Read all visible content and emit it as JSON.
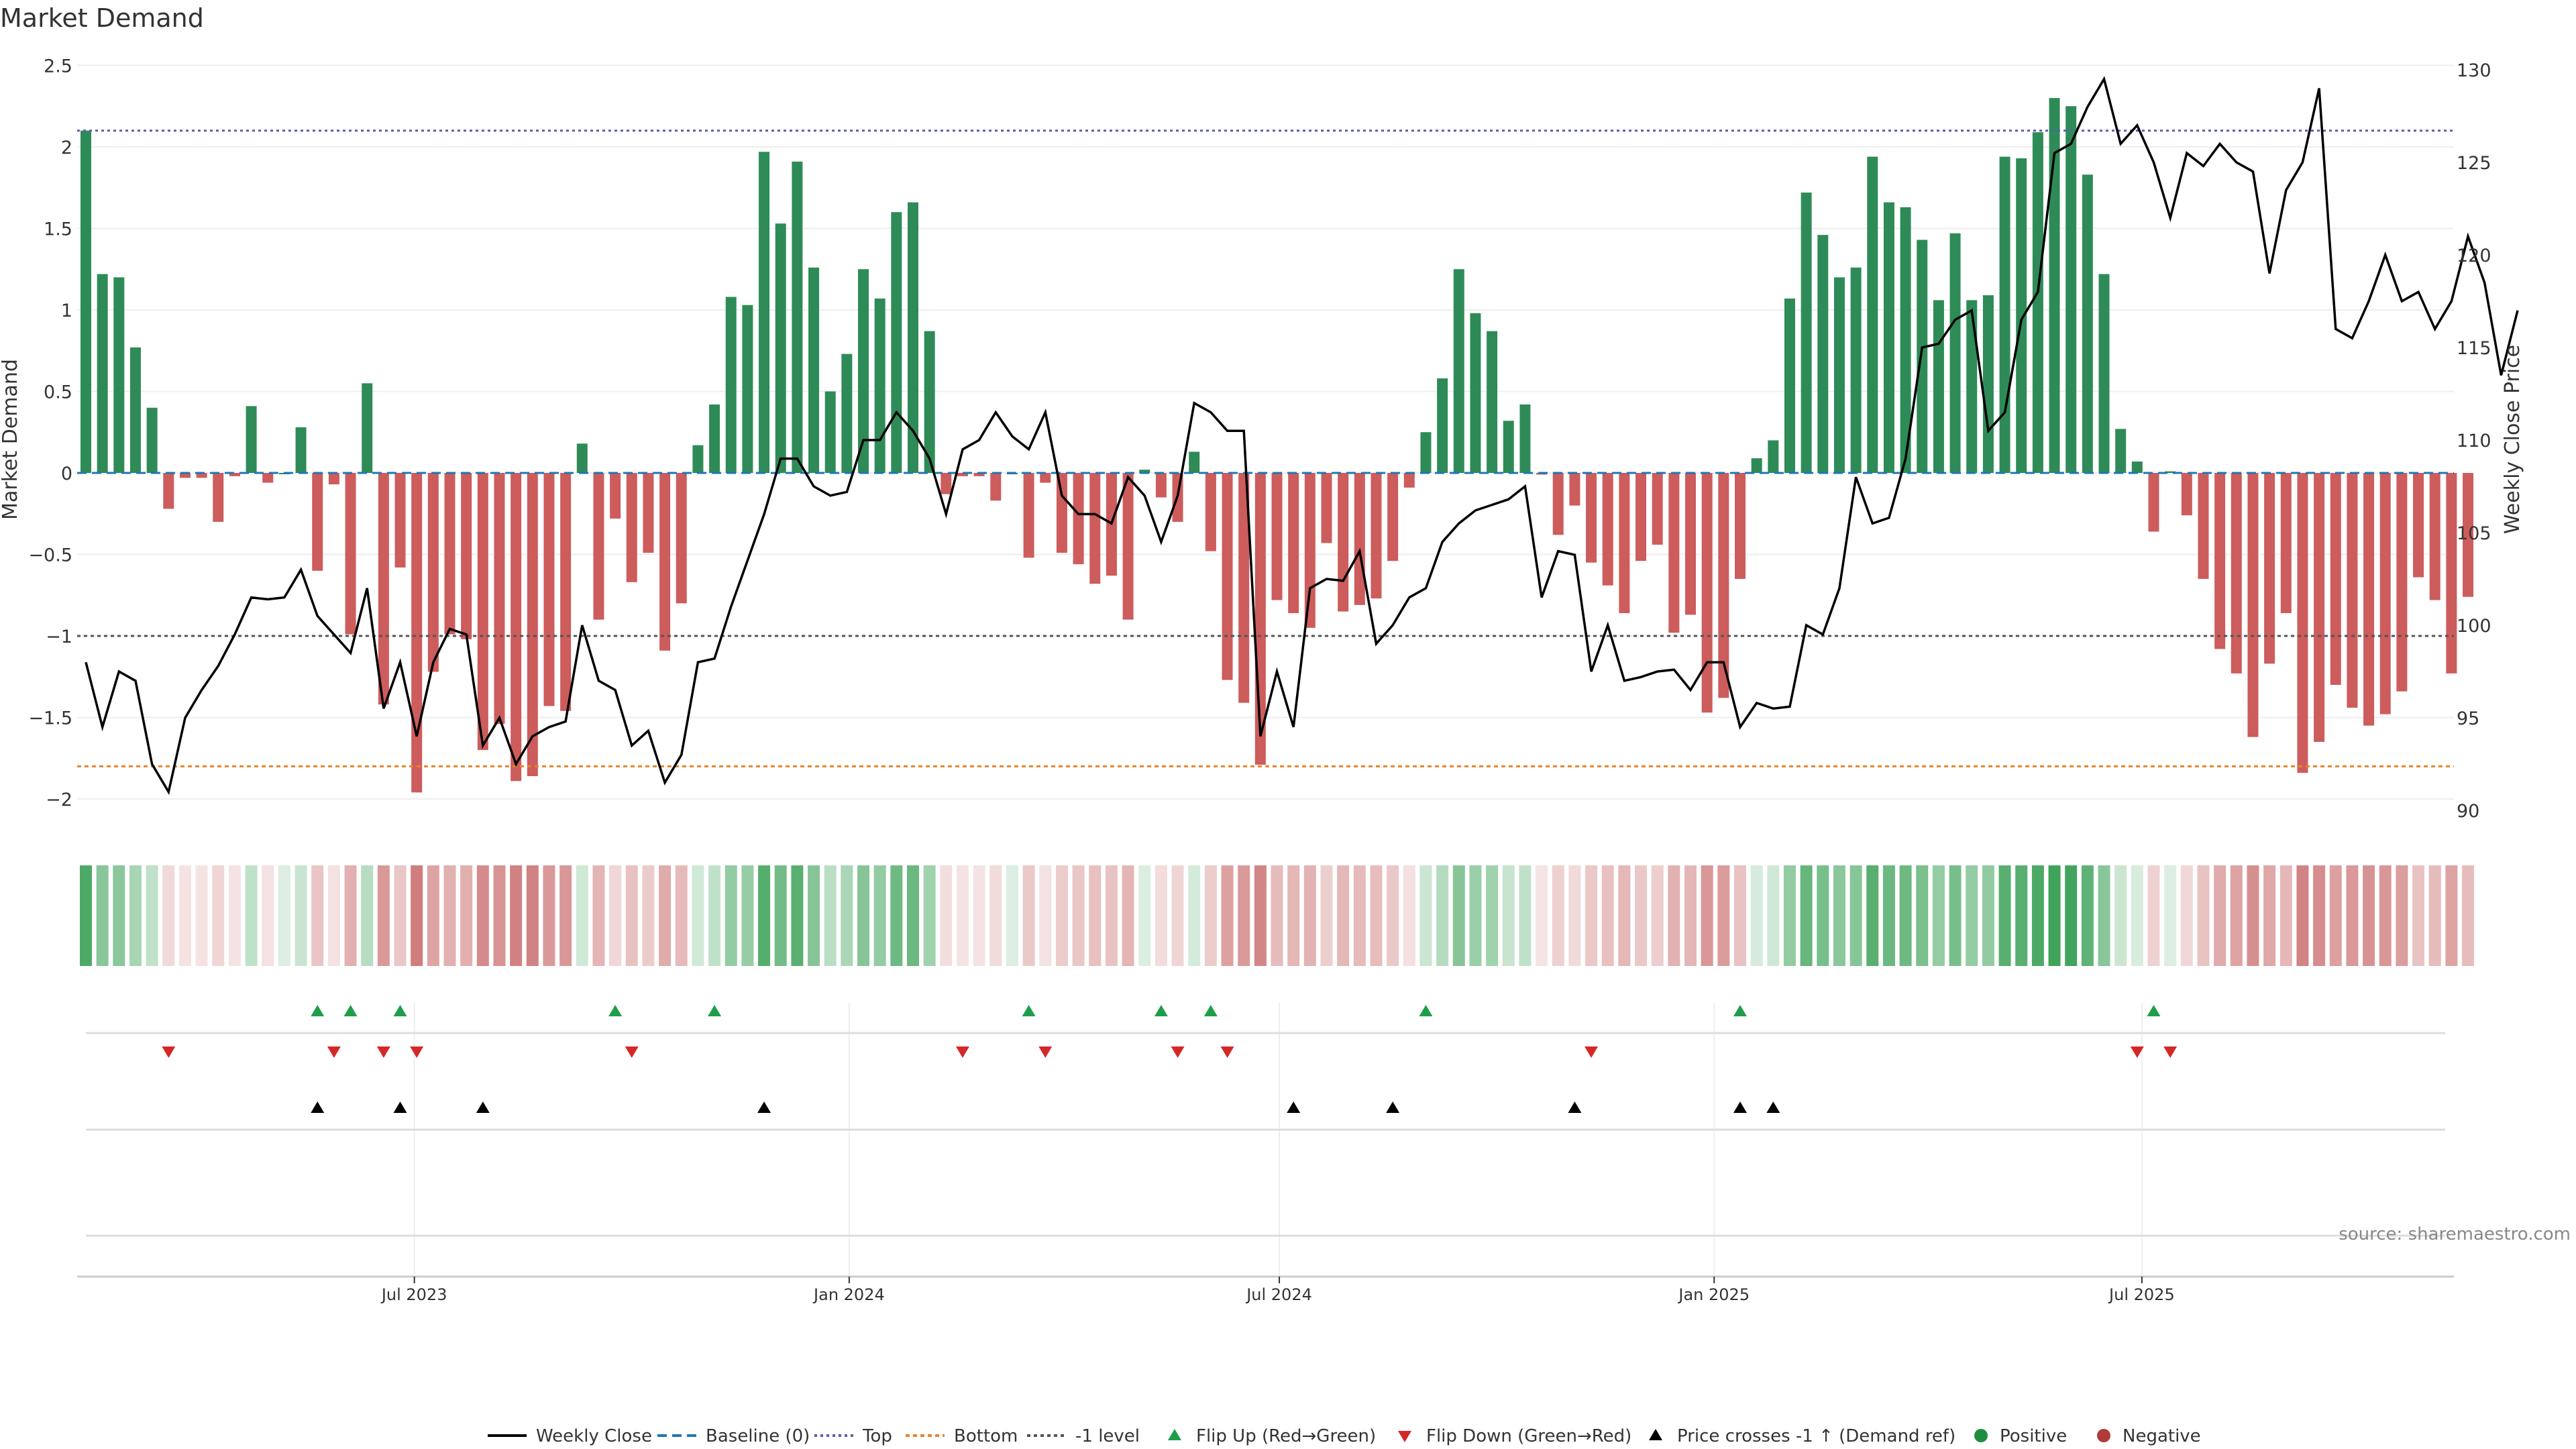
{
  "source_note": "source: sharemaestro.com",
  "colors": {
    "positive": "#2e8b57",
    "negative": "#cd5c5c",
    "price": "#000000",
    "baseline": "#1f77b4",
    "top": "#5b5bb5",
    "bottom": "#e8832a",
    "minus1": "#555555",
    "flip_up": "#1e9e4a",
    "flip_down": "#d62728"
  },
  "chart_data": {
    "type": "bar",
    "title": "Market Demand",
    "ylabel_left": "Market Demand",
    "ylabel_right": "Weekly Close Price",
    "x_start": "2023-02-12",
    "x_step_days": 7,
    "y_left_range": [
      -2.2,
      2.5
    ],
    "y_right_range": [
      88,
      131
    ],
    "y_left_ticks": [
      "-2",
      "-1.5",
      "-1",
      "-0.5",
      "0",
      "0.5",
      "1",
      "1.5",
      "2",
      "2.5"
    ],
    "y_left_tick_values": [
      -2,
      -1.5,
      -1,
      -0.5,
      0,
      0.5,
      1,
      1.5,
      2,
      2.5
    ],
    "y_right_ticks": [
      "90",
      "95",
      "100",
      "105",
      "110",
      "115",
      "120",
      "125",
      "130"
    ],
    "y_right_tick_values": [
      90,
      95,
      100,
      105,
      110,
      115,
      120,
      125,
      130
    ],
    "x_ticks": [
      "Jul 2023",
      "Jan 2024",
      "Jul 2024",
      "Jan 2025",
      "Jul 2025"
    ],
    "x_tick_dates": [
      "2023-07-01",
      "2024-01-01",
      "2024-07-01",
      "2025-01-01",
      "2025-07-01"
    ],
    "levels": {
      "top": 2.1,
      "bottom": -1.8,
      "minus_one": -1,
      "baseline": 0
    },
    "demand": [
      2.1,
      1.22,
      1.2,
      0.77,
      0.4,
      -0.22,
      -0.03,
      -0.03,
      -0.3,
      -0.02,
      0.41,
      -0.06,
      0.0,
      0.28,
      -0.6,
      -0.07,
      -0.99,
      0.55,
      -1.42,
      -0.58,
      -1.96,
      -1.22,
      -0.99,
      -1.02,
      -1.7,
      -1.54,
      -1.89,
      -1.86,
      -1.43,
      -1.46,
      0.18,
      -0.9,
      -0.28,
      -0.67,
      -0.49,
      -1.09,
      -0.8,
      0.17,
      0.42,
      1.08,
      1.03,
      1.97,
      1.53,
      1.91,
      1.26,
      0.5,
      0.73,
      1.25,
      1.07,
      1.6,
      1.66,
      0.87,
      -0.13,
      -0.02,
      -0.02,
      -0.17,
      0.0,
      -0.52,
      -0.06,
      -0.49,
      -0.56,
      -0.68,
      -0.63,
      -0.9,
      0.02,
      -0.15,
      -0.3,
      0.13,
      -0.48,
      -1.27,
      -1.41,
      -1.79,
      -0.78,
      -0.86,
      -0.95,
      -0.43,
      -0.85,
      -0.81,
      -0.77,
      -0.54,
      -0.09,
      0.25,
      0.58,
      1.25,
      0.98,
      0.87,
      0.32,
      0.42,
      -0.01,
      -0.38,
      -0.2,
      -0.55,
      -0.69,
      -0.86,
      -0.54,
      -0.44,
      -0.98,
      -0.87,
      -1.47,
      -1.38,
      -0.65,
      0.09,
      0.2,
      1.07,
      1.72,
      1.46,
      1.2,
      1.26,
      1.94,
      1.66,
      1.63,
      1.43,
      1.06,
      1.47,
      1.06,
      1.09,
      1.94,
      1.93,
      2.09,
      2.3,
      2.25,
      1.83,
      1.22,
      0.27,
      0.07,
      -0.36,
      0.01,
      -0.26,
      -0.65,
      -1.08,
      -1.23,
      -1.62,
      -1.17,
      -0.86,
      -1.84,
      -1.65,
      -1.3,
      -1.44,
      -1.55,
      -1.48,
      -1.34,
      -0.64,
      -0.78,
      -1.23,
      -0.76
    ],
    "price": [
      98.0,
      94.5,
      97.5,
      97.0,
      92.5,
      91.0,
      95.0,
      96.5,
      97.8,
      99.5,
      101.5,
      101.4,
      101.5,
      103.0,
      100.5,
      99.5,
      98.5,
      102.0,
      95.5,
      98.0,
      94.0,
      98.0,
      99.8,
      99.5,
      93.5,
      95.0,
      92.5,
      94.0,
      94.5,
      94.8,
      100.0,
      97.0,
      96.5,
      93.5,
      94.3,
      91.5,
      93.0,
      98.0,
      98.2,
      101.0,
      103.5,
      106.0,
      109.0,
      109.0,
      107.5,
      107.0,
      107.2,
      110.0,
      110.0,
      111.5,
      110.5,
      109.0,
      106.0,
      109.5,
      110.0,
      111.5,
      110.2,
      109.5,
      111.5,
      107.0,
      106.0,
      106.0,
      105.5,
      108.0,
      107.0,
      104.5,
      107.0,
      112.0,
      111.5,
      110.5,
      110.5,
      94.0,
      97.5,
      94.5,
      102.0,
      102.5,
      102.4,
      104.0,
      99.0,
      100.0,
      101.5,
      102.0,
      104.5,
      105.5,
      106.2,
      106.5,
      106.8,
      107.5,
      101.5,
      104.0,
      103.8,
      97.5,
      100.0,
      97.0,
      97.2,
      97.5,
      97.6,
      96.5,
      98.0,
      98.0,
      94.5,
      95.8,
      95.5,
      95.6,
      100.0,
      99.5,
      102.0,
      108.0,
      105.5,
      105.8,
      109.0,
      115.0,
      115.2,
      116.5,
      117.0,
      110.5,
      111.5,
      116.5,
      118.0,
      125.5,
      126.0,
      128.0,
      129.5,
      126.0,
      127.0,
      125.0,
      122.0,
      125.5,
      124.8,
      126.0,
      125.0,
      124.5,
      119.0,
      123.5,
      125.0,
      129.0,
      116.0,
      115.5,
      117.5,
      120.0,
      117.5,
      118.0,
      116.0,
      117.5,
      121.0,
      118.5,
      113.5,
      117.0
    ],
    "flip_up": [
      "2023-05-21",
      "2023-06-04",
      "2023-06-25",
      "2023-09-24",
      "2023-11-05",
      "2024-03-17",
      "2024-05-12",
      "2024-06-02",
      "2024-09-01",
      "2025-01-12",
      "2025-07-06"
    ],
    "flip_down": [
      "2023-03-19",
      "2023-05-28",
      "2023-06-18",
      "2023-07-02",
      "2023-10-01",
      "2024-02-18",
      "2024-03-24",
      "2024-05-19",
      "2024-06-09",
      "2024-11-10",
      "2025-06-29",
      "2025-07-13"
    ],
    "cross_up": [
      "2023-05-21",
      "2023-06-25",
      "2023-07-30",
      "2023-11-26",
      "2024-07-07",
      "2024-08-18",
      "2024-11-03",
      "2025-01-12",
      "2025-01-26"
    ],
    "legend": [
      "Weekly Close",
      "Baseline (0)",
      "Top",
      "Bottom",
      "-1 level",
      "Flip Up (Red→Green)",
      "Flip Down (Green→Red)",
      "Price crosses -1 ↑ (Demand ref)",
      "Positive",
      "Negative"
    ]
  }
}
